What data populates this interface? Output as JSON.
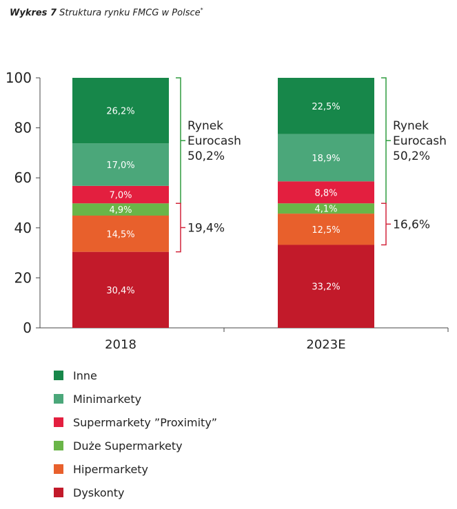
{
  "title": {
    "lead": "Wykres 7",
    "text": "Struktura rynku FMCG w Polsce",
    "footnote_mark": "*"
  },
  "chart_data": {
    "type": "bar",
    "stacked": true,
    "categories": [
      "2018",
      "2023E"
    ],
    "ylim": [
      0,
      100
    ],
    "yticks": [
      0,
      20,
      40,
      60,
      80,
      100
    ],
    "series": [
      {
        "name": "Dyskonty",
        "color": "#c21a2a",
        "values": [
          30.4,
          33.2
        ],
        "labels": [
          "30,4%",
          "33,2%"
        ]
      },
      {
        "name": "Hipermarkety",
        "color": "#e8602c",
        "values": [
          14.5,
          12.5
        ],
        "labels": [
          "14,5%",
          "12,5%"
        ]
      },
      {
        "name": "Duże Supermarkety",
        "color": "#6ab548",
        "values": [
          4.9,
          4.1
        ],
        "labels": [
          "4,9%",
          "4,1%"
        ]
      },
      {
        "name": "Supermarkety ”Proximity”",
        "color": "#e31f3f",
        "values": [
          7.0,
          8.8
        ],
        "labels": [
          "7,0%",
          "8,8%"
        ]
      },
      {
        "name": "Minimarkety",
        "color": "#4ba77a",
        "values": [
          17.0,
          18.9
        ],
        "labels": [
          "17,0%",
          "18,9%"
        ]
      },
      {
        "name": "Inne",
        "color": "#17874a",
        "values": [
          26.2,
          22.5
        ],
        "labels": [
          "26,2%",
          "22,5%"
        ]
      }
    ],
    "annotations": [
      {
        "category": "2018",
        "from": 49.8,
        "to": 100,
        "lines": [
          "Rynek",
          "Eurocash",
          "50,2%"
        ],
        "color": "#2e9b3e"
      },
      {
        "category": "2018",
        "from": 30.4,
        "to": 49.8,
        "lines": [
          "19,4%"
        ],
        "color": "#d2243a"
      },
      {
        "category": "2023E",
        "from": 49.8,
        "to": 100,
        "lines": [
          "Rynek",
          "Eurocash",
          "50,2%"
        ],
        "color": "#2e9b3e"
      },
      {
        "category": "2023E",
        "from": 33.2,
        "to": 49.8,
        "lines": [
          "16,6%"
        ],
        "color": "#d2243a"
      }
    ]
  },
  "legend": {
    "order": [
      "Inne",
      "Minimarkety",
      "Supermarkety ”Proximity”",
      "Duże Supermarkety",
      "Hipermarkety",
      "Dyskonty"
    ]
  }
}
